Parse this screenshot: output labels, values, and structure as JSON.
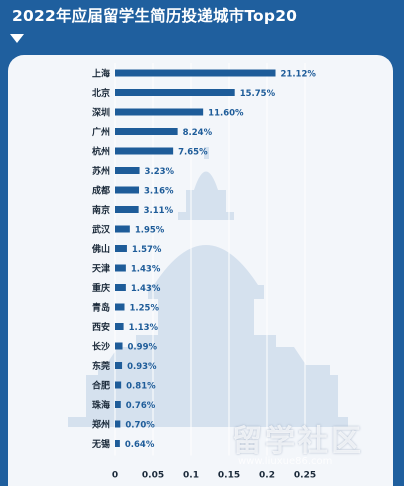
{
  "header": {
    "title": "2022年应届留学生简历投递城市Top20"
  },
  "watermark": {
    "text": "留学社区",
    "url": "www.liuxue86.com"
  },
  "colors": {
    "bar": "#1e5c99",
    "background": "#1f5f9e",
    "card": "#f3f6fa",
    "gridline": "#ffffff"
  },
  "chart_data": {
    "type": "bar",
    "orientation": "horizontal",
    "categories": [
      "上海",
      "北京",
      "深圳",
      "广州",
      "杭州",
      "苏州",
      "成都",
      "南京",
      "武汉",
      "佛山",
      "天津",
      "重庆",
      "青岛",
      "西安",
      "长沙",
      "东莞",
      "合肥",
      "珠海",
      "郑州",
      "无锡"
    ],
    "values": [
      0.2112,
      0.1575,
      0.116,
      0.0824,
      0.0765,
      0.0323,
      0.0316,
      0.0311,
      0.0195,
      0.0157,
      0.0143,
      0.0143,
      0.0125,
      0.0113,
      0.0099,
      0.0093,
      0.0081,
      0.0076,
      0.007,
      0.0064
    ],
    "value_labels": [
      "21.12%",
      "15.75%",
      "11.60%",
      "8.24%",
      "7.65%",
      "3.23%",
      "3.16%",
      "3.11%",
      "1.95%",
      "1.57%",
      "1.43%",
      "1.43%",
      "1.25%",
      "1.13%",
      "0.99%",
      "0.93%",
      "0.81%",
      "0.76%",
      "0.70%",
      "0.64%"
    ],
    "x_ticks": [
      "0",
      "0.05",
      "0.1",
      "0.15",
      "0.2",
      "0.25"
    ],
    "xlim": [
      0,
      0.25
    ],
    "grid": true
  }
}
